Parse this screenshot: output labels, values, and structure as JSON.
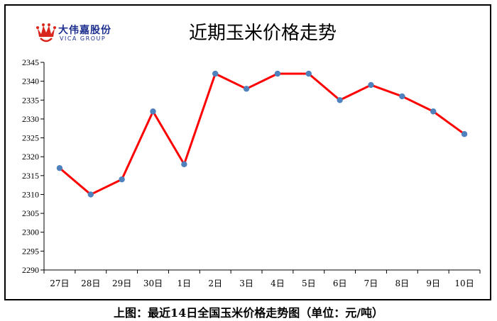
{
  "logo": {
    "text_cn": "大伟嘉股份",
    "text_en": "VICA GROUP",
    "icon": "crown-logo-icon",
    "colors": {
      "crown": "#d9261c",
      "text": "#1d2f8f"
    }
  },
  "caption": "上图：最近14日全国玉米价格走势图（单位：元/吨）",
  "chart_data": {
    "type": "line",
    "title": "近期玉米价格走势",
    "categories": [
      "27日",
      "28日",
      "29日",
      "30日",
      "1日",
      "2日",
      "3日",
      "4日",
      "5日",
      "6日",
      "7日",
      "8日",
      "9日",
      "10日"
    ],
    "series": [
      {
        "values": [
          2317,
          2310,
          2314,
          2332,
          2318,
          2342,
          2338,
          2342,
          2342,
          2335,
          2339,
          2336,
          2332,
          2326
        ]
      }
    ],
    "ylim": [
      2290,
      2345
    ],
    "yticks": [
      2290,
      2295,
      2300,
      2305,
      2310,
      2315,
      2320,
      2325,
      2330,
      2335,
      2340,
      2345
    ],
    "xlabel": "",
    "ylabel": "",
    "grid": false,
    "legend": "none",
    "colors": {
      "line": "#ff0000",
      "marker": "#4f81bd"
    }
  }
}
